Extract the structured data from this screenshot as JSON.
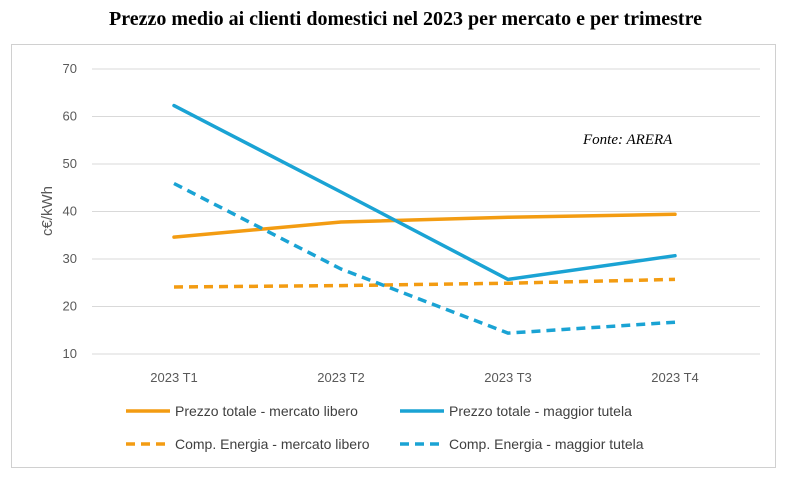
{
  "colors": {
    "orange": "#F39C12",
    "blue": "#1AA3D4",
    "grid": "#d9d9d9"
  },
  "chart_data": {
    "type": "line",
    "title": "Prezzo medio ai clienti domestici nel 2023 per mercato e per trimestre",
    "ylabel": "c€/kWh",
    "source": "Fonte: ARERA",
    "ylim": [
      10,
      70
    ],
    "yticks": [
      10,
      20,
      30,
      40,
      50,
      60,
      70
    ],
    "grid": true,
    "legend_position": "bottom",
    "categories": [
      "2023 T1",
      "2023 T2",
      "2023 T3",
      "2023 T4"
    ],
    "series": [
      {
        "name": "Prezzo totale - mercato libero",
        "values": [
          34.6,
          37.8,
          38.8,
          39.4
        ],
        "color": "#F39C12",
        "style": "solid"
      },
      {
        "name": "Prezzo totale - maggior tutela",
        "values": [
          62.3,
          44.1,
          25.7,
          30.7
        ],
        "color": "#1AA3D4",
        "style": "solid"
      },
      {
        "name": "Comp. Energia - mercato libero",
        "values": [
          24.1,
          24.4,
          24.9,
          25.7
        ],
        "color": "#F39C12",
        "style": "dashed"
      },
      {
        "name": "Comp. Energia - maggior tutela",
        "values": [
          45.9,
          27.9,
          14.4,
          16.7
        ],
        "color": "#1AA3D4",
        "style": "dashed"
      }
    ]
  }
}
